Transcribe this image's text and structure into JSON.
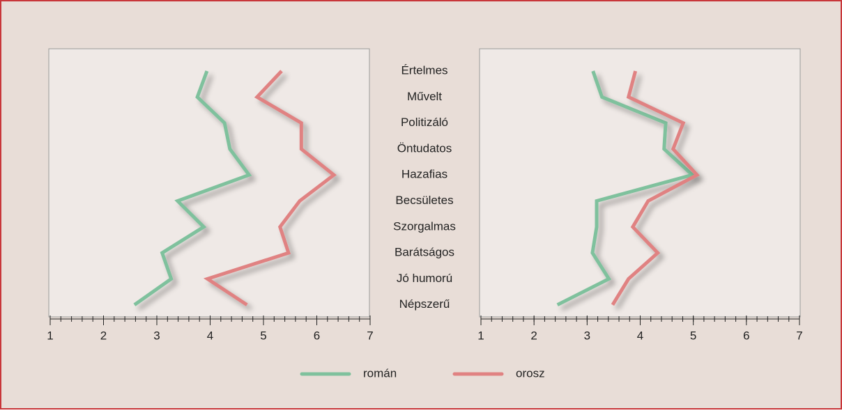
{
  "chart_data": {
    "type": "line",
    "categories": [
      "Értelmes",
      "Művelt",
      "Politizáló",
      "Öntudatos",
      "Hazafias",
      "Becsületes",
      "Szorgalmas",
      "Barátságos",
      "Jó humorú",
      "Népszerű"
    ],
    "series": [
      {
        "name": "román",
        "color": "#7fc19d",
        "values": [
          [
            3.94,
            3.76,
            4.27,
            4.37,
            4.73,
            3.39,
            3.88,
            3.1,
            3.27,
            2.58
          ],
          [
            3.11,
            3.28,
            4.48,
            4.45,
            4.98,
            3.18,
            3.18,
            3.1,
            3.41,
            2.44
          ]
        ]
      },
      {
        "name": "orosz",
        "color": "#e08282",
        "values": [
          [
            5.34,
            4.88,
            5.71,
            5.71,
            6.32,
            5.68,
            5.31,
            5.47,
            3.95,
            4.69
          ],
          [
            3.91,
            3.78,
            4.81,
            4.62,
            5.07,
            4.15,
            3.86,
            4.33,
            3.78,
            3.48
          ]
        ]
      }
    ],
    "xlim": [
      1,
      7
    ],
    "xticks": [
      1,
      2,
      3,
      4,
      5,
      6,
      7
    ],
    "xminor": 0.2
  }
}
